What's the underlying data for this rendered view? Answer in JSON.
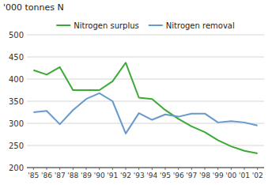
{
  "chart_data": {
    "type": "line",
    "y_label": "'000 tonnes N",
    "categories": [
      "'85",
      "'86",
      "'87",
      "'88",
      "'89",
      "'90",
      "'91",
      "'92",
      "'93",
      "'94",
      "'95",
      "'96",
      "'97",
      "'98",
      "'99",
      "'00",
      "'01",
      "'02"
    ],
    "series": [
      {
        "name": "Nitrogen surplus",
        "color": "#3aaa35",
        "values": [
          420,
          410,
          427,
          375,
          375,
          375,
          395,
          437,
          358,
          355,
          330,
          310,
          293,
          280,
          262,
          248,
          238,
          232
        ]
      },
      {
        "name": "Nitrogen removal",
        "color": "#6699cc",
        "values": [
          325,
          328,
          298,
          330,
          355,
          368,
          350,
          277,
          323,
          308,
          320,
          315,
          322,
          322,
          302,
          305,
          302,
          295
        ]
      }
    ],
    "ylim": [
      200,
      500
    ],
    "yticks": [
      200,
      250,
      300,
      350,
      400,
      450,
      500
    ],
    "grid": true,
    "legend": "top"
  }
}
